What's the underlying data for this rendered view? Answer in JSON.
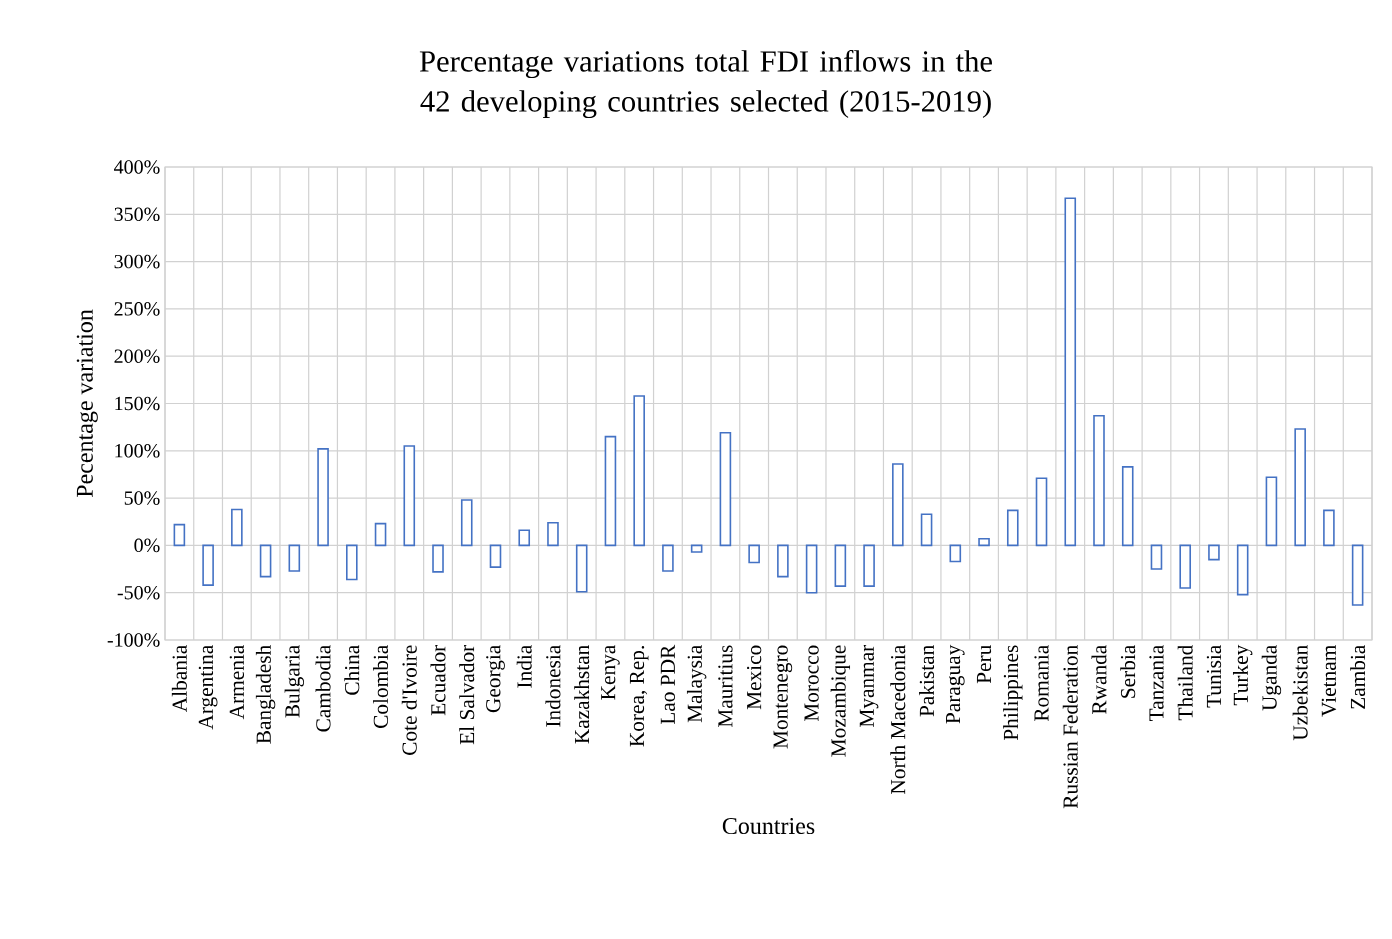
{
  "chart_data": {
    "type": "bar",
    "title": "Percentage variations total FDI inflows in the 42 developing countries selected (2015-2019)",
    "xlabel": "Countries",
    "ylabel": "Pecentage variation",
    "categories": [
      "Albania",
      "Argentina",
      "Armenia",
      "Bangladesh",
      "Bulgaria",
      "Cambodia",
      "China",
      "Colombia",
      "Cote d'Ivoire",
      "Ecuador",
      "El Salvador",
      "Georgia",
      "India",
      "Indonesia",
      "Kazakhstan",
      "Kenya",
      "Korea, Rep.",
      "Lao PDR",
      "Malaysia",
      "Mauritius",
      "Mexico",
      "Montenegro",
      "Morocco",
      "Mozambique",
      "Myanmar",
      "North Macedonia",
      "Pakistan",
      "Paraguay",
      "Peru",
      "Philippines",
      "Romania",
      "Russian Federation",
      "Rwanda",
      "Serbia",
      "Tanzania",
      "Thailand",
      "Tunisia",
      "Turkey",
      "Uganda",
      "Uzbekistan",
      "Vietnam",
      "Zambia"
    ],
    "values": [
      22,
      -42,
      38,
      -33,
      -27,
      102,
      -36,
      23,
      105,
      -28,
      48,
      -23,
      16,
      24,
      -49,
      115,
      158,
      -27,
      -7,
      119,
      -18,
      -33,
      -50,
      -43,
      -43,
      86,
      33,
      -17,
      7,
      37,
      71,
      367,
      137,
      83,
      -25,
      -45,
      -15,
      -52,
      72,
      123,
      37,
      -63
    ],
    "color": "#4472c4",
    "ylim": [
      -100,
      400
    ],
    "yticks": [
      {
        "value": -100,
        "label": "-100%"
      },
      {
        "value": -50,
        "label": "-50%"
      },
      {
        "value": 0,
        "label": "0%"
      },
      {
        "value": 50,
        "label": "50%"
      },
      {
        "value": 100,
        "label": "100%"
      },
      {
        "value": 150,
        "label": "150%"
      },
      {
        "value": 200,
        "label": "200%"
      },
      {
        "value": 250,
        "label": "250%"
      },
      {
        "value": 300,
        "label": "300%"
      },
      {
        "value": 350,
        "label": "350%"
      },
      {
        "value": 400,
        "label": "400%"
      }
    ],
    "grid": true
  }
}
